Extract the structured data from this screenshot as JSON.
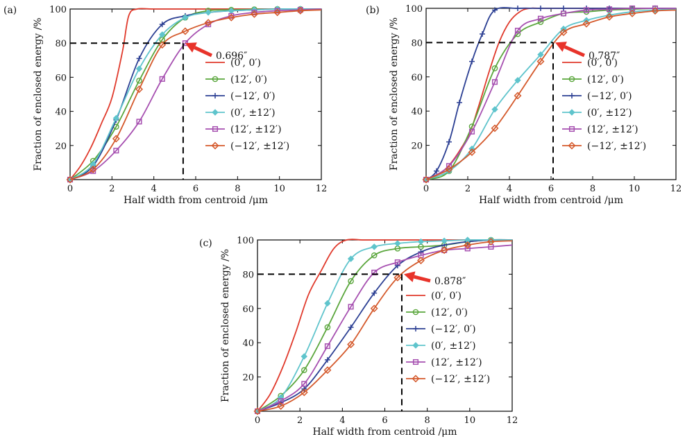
{
  "colors": {
    "c00": "#e0392b",
    "c120": "#5aa63c",
    "cm120": "#2b3f93",
    "c0pm": "#5fc4cc",
    "c12pm": "#a64fb0",
    "cm12pm": "#d4582a",
    "ref": "#000000"
  },
  "chart_data": [
    {
      "panel": "(a)",
      "type": "line",
      "xlabel": "Half width from centroid /μm",
      "ylabel": "Fraction of enclosed energy /%",
      "xlim": [
        0,
        12
      ],
      "ylim": [
        0,
        100
      ],
      "xticks": [
        "0",
        "2",
        "4",
        "6",
        "8",
        "10",
        "12"
      ],
      "yticks": [
        "20",
        "40",
        "60",
        "80",
        "100"
      ],
      "annotation": {
        "label": "0.696″",
        "x": 5.4,
        "y": 80
      },
      "series": [
        {
          "name": "(0′, 0′)",
          "marker": "none",
          "x": [
            0,
            0.5,
            1,
            1.5,
            2,
            2.5,
            2.8,
            3.2,
            4,
            6,
            12
          ],
          "y": [
            0,
            8,
            19,
            33,
            48,
            75,
            96,
            100,
            100,
            100,
            100
          ]
        },
        {
          "name": "(12′, 0′)",
          "marker": "circle",
          "x": [
            0,
            1.1,
            2.2,
            3.3,
            4.4,
            5.5,
            6.6,
            7.7,
            8.8,
            9.9,
            11,
            12
          ],
          "y": [
            0,
            11,
            31,
            58,
            82,
            95,
            99,
            99.5,
            99.8,
            100,
            100,
            100
          ]
        },
        {
          "name": "(−12′, 0′)",
          "marker": "plus",
          "x": [
            0,
            1.1,
            2.2,
            3.3,
            4.4,
            5.5,
            6.6,
            7.7,
            8.8,
            9.9,
            11,
            12
          ],
          "y": [
            0,
            8,
            35,
            71,
            91,
            96,
            98,
            99,
            99.5,
            100,
            100,
            100
          ]
        },
        {
          "name": "(0′, ±12′)",
          "marker": "diamond",
          "x": [
            0,
            1.1,
            2.2,
            3.3,
            4.4,
            5.5,
            6.6,
            7.7,
            8.8,
            9.9,
            11,
            12
          ],
          "y": [
            0,
            9,
            36,
            65,
            85,
            95,
            98,
            99,
            99.5,
            100,
            100,
            100
          ]
        },
        {
          "name": "(12′, ±12′)",
          "marker": "square",
          "x": [
            0,
            1.1,
            2.2,
            3.3,
            4.4,
            5.5,
            6.6,
            7.7,
            8.8,
            9.9,
            11,
            12
          ],
          "y": [
            0,
            5,
            17,
            34,
            59,
            80,
            91,
            96,
            98,
            99,
            99.5,
            100
          ]
        },
        {
          "name": "(−12′, ±12′)",
          "marker": "diamond-open",
          "x": [
            0,
            1.1,
            2.2,
            3.3,
            4.4,
            5.5,
            6.6,
            7.7,
            8.8,
            9.9,
            11,
            12
          ],
          "y": [
            0,
            6,
            24,
            53,
            79,
            87,
            92,
            95,
            97,
            98,
            99,
            99.5
          ]
        }
      ]
    },
    {
      "panel": "(b)",
      "type": "line",
      "xlabel": "Half width from centroid /μm",
      "ylabel": "Fraction of enclosed energy /%",
      "xlim": [
        0,
        12
      ],
      "ylim": [
        0,
        100
      ],
      "xticks": [
        "0",
        "2",
        "4",
        "6",
        "8",
        "10",
        "12"
      ],
      "yticks": [
        "20",
        "40",
        "60",
        "80",
        "100"
      ],
      "annotation": {
        "label": "0.787″",
        "x": 6.1,
        "y": 80
      },
      "series": [
        {
          "name": "(0′, 0′)",
          "marker": "none",
          "x": [
            0,
            1,
            2,
            2.5,
            3,
            3.5,
            4,
            4.5,
            5,
            6,
            12
          ],
          "y": [
            0,
            7,
            25,
            42,
            62,
            80,
            92,
            98,
            100,
            100,
            100
          ]
        },
        {
          "name": "(12′, 0′)",
          "marker": "circle",
          "x": [
            0,
            1.1,
            2.2,
            3.3,
            4.4,
            5.5,
            6.6,
            7.7,
            8.8,
            9.9,
            11,
            12
          ],
          "y": [
            0,
            5,
            31,
            65,
            85,
            92,
            97,
            98,
            99,
            99.5,
            100,
            100
          ]
        },
        {
          "name": "(−12′, 0′)",
          "marker": "plus",
          "x": [
            0,
            0.5,
            1.1,
            1.6,
            2.2,
            2.7,
            3.3,
            4.4,
            5.5,
            6.6,
            7.7,
            8.8,
            9.9,
            11,
            12
          ],
          "y": [
            0,
            5,
            22,
            45,
            69,
            85,
            99,
            100,
            100,
            100,
            100,
            100,
            100,
            100,
            100
          ]
        },
        {
          "name": "(0′, ±12′)",
          "marker": "diamond",
          "x": [
            0,
            1.1,
            2.2,
            3.3,
            4.4,
            5.5,
            6.6,
            7.7,
            8.8,
            9.9,
            11,
            12
          ],
          "y": [
            0,
            5,
            18,
            41,
            58,
            73,
            88,
            93,
            96,
            98,
            99,
            99.5
          ]
        },
        {
          "name": "(12′, ±12′)",
          "marker": "square",
          "x": [
            0,
            1.1,
            2.2,
            3.3,
            4.4,
            5.5,
            6.6,
            7.7,
            8.8,
            9.9,
            11,
            12
          ],
          "y": [
            0,
            8,
            28,
            57,
            87,
            94,
            97,
            99,
            99.5,
            100,
            100,
            100
          ]
        },
        {
          "name": "(−12′, ±12′)",
          "marker": "diamond-open",
          "x": [
            0,
            1.1,
            2.2,
            3.3,
            4.4,
            5.5,
            6.6,
            7.7,
            8.8,
            9.9,
            11,
            12
          ],
          "y": [
            0,
            6,
            16,
            30,
            49,
            69,
            86,
            91,
            95,
            97,
            98.5,
            99
          ]
        }
      ]
    },
    {
      "panel": "(c)",
      "type": "line",
      "xlabel": "Half width from centroid /μm",
      "ylabel": "Fraction of enclosed energy /%",
      "xlim": [
        0,
        12
      ],
      "ylim": [
        0,
        100
      ],
      "xticks": [
        "0",
        "2",
        "4",
        "6",
        "8",
        "10",
        "12"
      ],
      "yticks": [
        "20",
        "40",
        "60",
        "80",
        "100"
      ],
      "annotation": {
        "label": "0.878″",
        "x": 6.8,
        "y": 80
      },
      "series": [
        {
          "name": "(0′, 0′)",
          "marker": "none",
          "x": [
            0,
            0.6,
            1.2,
            1.8,
            2.4,
            3,
            3.6,
            4.2,
            5,
            6,
            12
          ],
          "y": [
            0,
            10,
            26,
            46,
            68,
            82,
            95,
            100,
            100,
            100,
            100
          ]
        },
        {
          "name": "(12′, 0′)",
          "marker": "circle",
          "x": [
            0,
            1.1,
            2.2,
            3.3,
            4.4,
            5.5,
            6.6,
            7.7,
            8.8,
            9.9,
            11,
            12
          ],
          "y": [
            0,
            9,
            24,
            49,
            76,
            91,
            95,
            96,
            97,
            99,
            100,
            100
          ]
        },
        {
          "name": "(−12′, 0′)",
          "marker": "plus",
          "x": [
            0,
            1.1,
            2.2,
            3.3,
            4.4,
            5.5,
            6.6,
            7.7,
            8.8,
            9.9,
            11,
            12
          ],
          "y": [
            0,
            5,
            13,
            30,
            49,
            69,
            85,
            93,
            97,
            99,
            100,
            100
          ]
        },
        {
          "name": "(0′, ±12′)",
          "marker": "diamond",
          "x": [
            0,
            1.1,
            2.2,
            3.3,
            4.4,
            5.5,
            6.6,
            7.7,
            8.8,
            9.9,
            11,
            12
          ],
          "y": [
            0,
            8,
            32,
            63,
            89,
            96,
            98,
            99,
            99.5,
            100,
            100,
            100
          ]
        },
        {
          "name": "(12′, ±12′)",
          "marker": "square",
          "x": [
            0,
            1.1,
            2.2,
            3.3,
            4.4,
            5.5,
            6.6,
            7.7,
            8.8,
            9.9,
            11,
            12
          ],
          "y": [
            0,
            6,
            16,
            38,
            61,
            81,
            87,
            91,
            94,
            95,
            96,
            97
          ]
        },
        {
          "name": "(−12′, ±12′)",
          "marker": "diamond-open",
          "x": [
            0,
            1.1,
            2.2,
            3.3,
            4.4,
            5.5,
            6.6,
            7.7,
            8.8,
            9.9,
            11,
            12
          ],
          "y": [
            0,
            3,
            11,
            24,
            39,
            60,
            78,
            88,
            94,
            97,
            99,
            99.5
          ]
        }
      ]
    }
  ]
}
